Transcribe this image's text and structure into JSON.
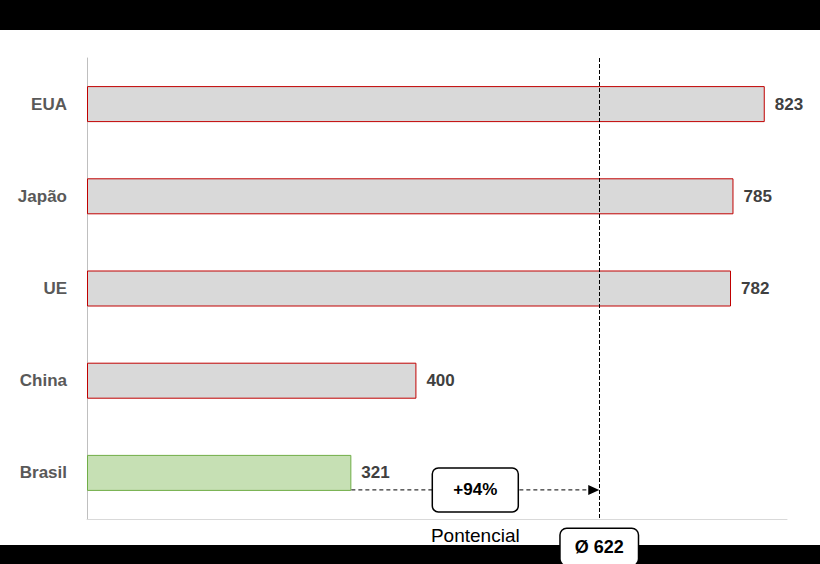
{
  "chart_data": {
    "type": "bar",
    "orientation": "horizontal",
    "categories": [
      "EUA",
      "Japão",
      "UE",
      "China",
      "Brasil"
    ],
    "values": [
      823,
      785,
      782,
      400,
      321
    ],
    "colors": [
      "#d9d9d9",
      "#d9d9d9",
      "#d9d9d9",
      "#d9d9d9",
      "#c6e0b4"
    ],
    "xlim": [
      0,
      850
    ],
    "xticks": [],
    "grid": false,
    "tick_labels": "y",
    "data_labels": true,
    "reference_line": {
      "value": 622,
      "label": "Ø 622"
    },
    "annotations": [
      {
        "text": "+94%",
        "from": 321,
        "to": 622,
        "category": "Brasil",
        "label": "Pontencial"
      }
    ]
  }
}
